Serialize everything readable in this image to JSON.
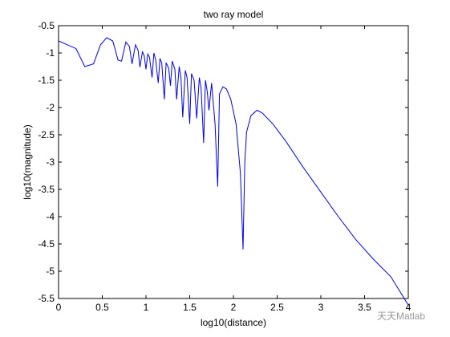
{
  "chart_data": {
    "type": "line",
    "title": "two ray model",
    "xlabel": "log10(distance)",
    "ylabel": "log10(magnitude)",
    "xlim": [
      0,
      4
    ],
    "ylim": [
      -5.5,
      -0.5
    ],
    "xticks": [
      "0",
      "0.5",
      "1",
      "1.5",
      "2",
      "2.5",
      "3",
      "3.5",
      "4"
    ],
    "yticks": [
      "-0.5",
      "-1",
      "-1.5",
      "-2",
      "-2.5",
      "-3",
      "-3.5",
      "-4",
      "-4.5",
      "-5",
      "-5.5"
    ],
    "grid": false,
    "series_color": "#0000ff",
    "series": [
      {
        "x": [
          0.0,
          0.1,
          0.2,
          0.3,
          0.4,
          0.48,
          0.55,
          0.62,
          0.68,
          0.72,
          0.77,
          0.81,
          0.84,
          0.88,
          0.91,
          0.93,
          0.96,
          0.98,
          1.0,
          1.02,
          1.04,
          1.07,
          1.09,
          1.11,
          1.14,
          1.16,
          1.18,
          1.21,
          1.23,
          1.26,
          1.28,
          1.3,
          1.33,
          1.35,
          1.38,
          1.4,
          1.42,
          1.45,
          1.47,
          1.5,
          1.52,
          1.55,
          1.58,
          1.61,
          1.63,
          1.66,
          1.68,
          1.7,
          1.72,
          1.75,
          1.79,
          1.82,
          1.84,
          1.88,
          1.92,
          1.97,
          2.03,
          2.08,
          2.11,
          2.13,
          2.15,
          2.2,
          2.27,
          2.33,
          2.45,
          2.6,
          2.8,
          3.0,
          3.2,
          3.4,
          3.6,
          3.8,
          4.0
        ],
        "y": [
          -0.78,
          -0.85,
          -0.92,
          -1.25,
          -1.2,
          -0.85,
          -0.72,
          -0.78,
          -1.13,
          -1.15,
          -0.8,
          -0.88,
          -1.2,
          -0.85,
          -0.95,
          -1.26,
          -0.98,
          -1.05,
          -1.3,
          -1.02,
          -1.08,
          -1.45,
          -1.0,
          -1.12,
          -1.55,
          -1.1,
          -1.18,
          -1.85,
          -1.18,
          -1.28,
          -1.6,
          -1.15,
          -1.3,
          -1.85,
          -1.25,
          -1.45,
          -2.18,
          -1.32,
          -1.45,
          -2.3,
          -1.38,
          -1.5,
          -2.2,
          -1.45,
          -1.65,
          -2.65,
          -1.5,
          -1.7,
          -2.05,
          -1.55,
          -2.3,
          -3.45,
          -1.75,
          -1.62,
          -1.66,
          -1.85,
          -2.3,
          -3.2,
          -4.6,
          -3.0,
          -2.45,
          -2.15,
          -2.05,
          -2.1,
          -2.3,
          -2.62,
          -3.1,
          -3.55,
          -4.0,
          -4.42,
          -4.78,
          -5.1,
          -5.62
        ]
      }
    ]
  },
  "watermark": "天天Matlab"
}
